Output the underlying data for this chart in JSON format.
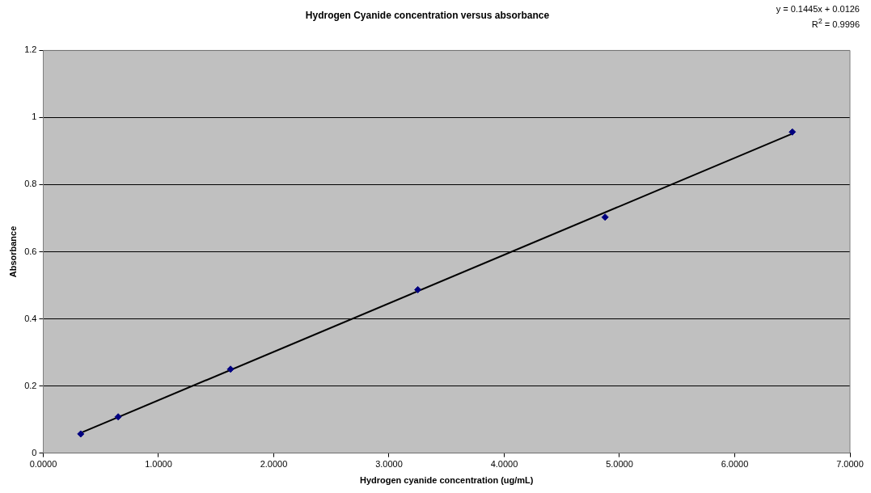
{
  "chart_data": {
    "type": "scatter",
    "title": "Hydrogen Cyanide concentration versus absorbance",
    "xlabel": "Hydrogen cyanide concentration (ug/mL)",
    "ylabel": "Absorbance",
    "annotations": [
      "y = 0.1445x + 0.0126",
      "R$^{2}$ = 0.9996"
    ],
    "series": [
      {
        "color": "#000080",
        "x": [
          0.325,
          0.65,
          1.625,
          3.25,
          4.875,
          6.5
        ],
        "values": [
          0.057,
          0.108,
          0.25,
          0.487,
          0.703,
          0.957
        ]
      },
      {
        "type": "line",
        "color": "#000000",
        "marker": "none",
        "x": [
          0.325,
          6.5
        ],
        "values": [
          0.06,
          0.952
        ]
      }
    ],
    "xlim": [
      0,
      7
    ],
    "xticks": [
      {
        "value": 0,
        "label": "0.0000"
      },
      {
        "value": 1,
        "label": "1.0000"
      },
      {
        "value": 2,
        "label": "2.0000"
      },
      {
        "value": 3,
        "label": "3.0000"
      },
      {
        "value": 4,
        "label": "4.0000"
      },
      {
        "value": 5,
        "label": "5.0000"
      },
      {
        "value": 6,
        "label": "6.0000"
      },
      {
        "value": 7,
        "label": "7.0000"
      }
    ],
    "ylim": [
      0,
      1.2
    ],
    "yticks": [
      0,
      0.2,
      0.4,
      0.6,
      0.8,
      1,
      1.2
    ],
    "grid": "y",
    "legend": false,
    "marker": "diamond"
  }
}
